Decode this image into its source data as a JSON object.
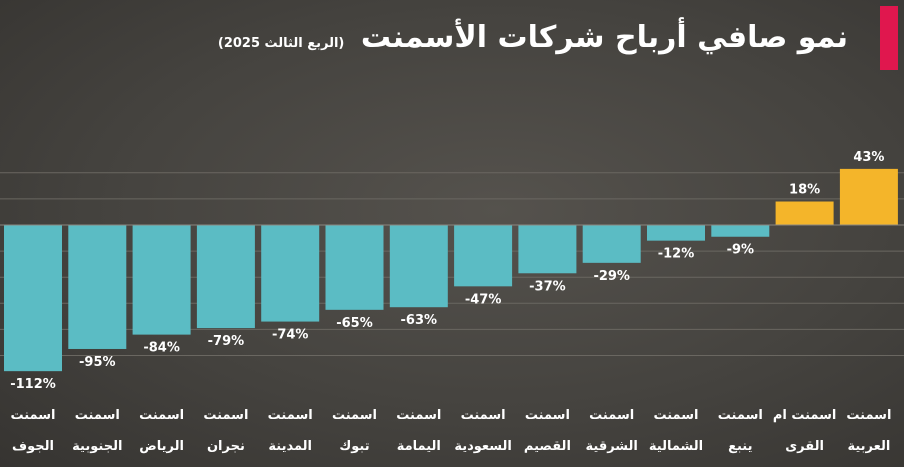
{
  "chart_data": {
    "type": "bar",
    "title": "نمو صافي أرباح شركات الأسمنت",
    "subtitle": "(الربع الثالث 2025)",
    "categories": [
      [
        "اسمنت",
        "الجوف"
      ],
      [
        "اسمنت",
        "الجنوبية"
      ],
      [
        "اسمنت",
        "الرياض"
      ],
      [
        "اسمنت",
        "نجران"
      ],
      [
        "اسمنت",
        "المدينة"
      ],
      [
        "اسمنت",
        "تبوك"
      ],
      [
        "اسمنت",
        "اليمامة"
      ],
      [
        "اسمنت",
        "السعودية"
      ],
      [
        "اسمنت",
        "القصيم"
      ],
      [
        "اسمنت",
        "الشرقية"
      ],
      [
        "اسمنت",
        "الشمالية"
      ],
      [
        "اسمنت",
        "ينبع"
      ],
      [
        "اسمنت ام",
        "القرى"
      ],
      [
        "اسمنت",
        "العربية"
      ]
    ],
    "values": [
      -112,
      -95,
      -84,
      -79,
      -74,
      -65,
      -63,
      -47,
      -37,
      -29,
      -12,
      -9,
      18,
      43
    ],
    "labels": [
      "-112%",
      "-95%",
      "-84%",
      "-79%",
      "-74%",
      "-65%",
      "-63%",
      "-47%",
      "-37%",
      "-29%",
      "-12%",
      "-9%",
      "18%",
      "43%"
    ],
    "unit": "%",
    "xlabel": "",
    "ylabel": "",
    "ylim": [
      -112,
      43
    ],
    "grid": true,
    "legend": "none",
    "colors": {
      "negative": "#5bbcc4",
      "positive": "#f4b52a",
      "grid": "#6a6761",
      "accent": "#e0174e"
    }
  }
}
